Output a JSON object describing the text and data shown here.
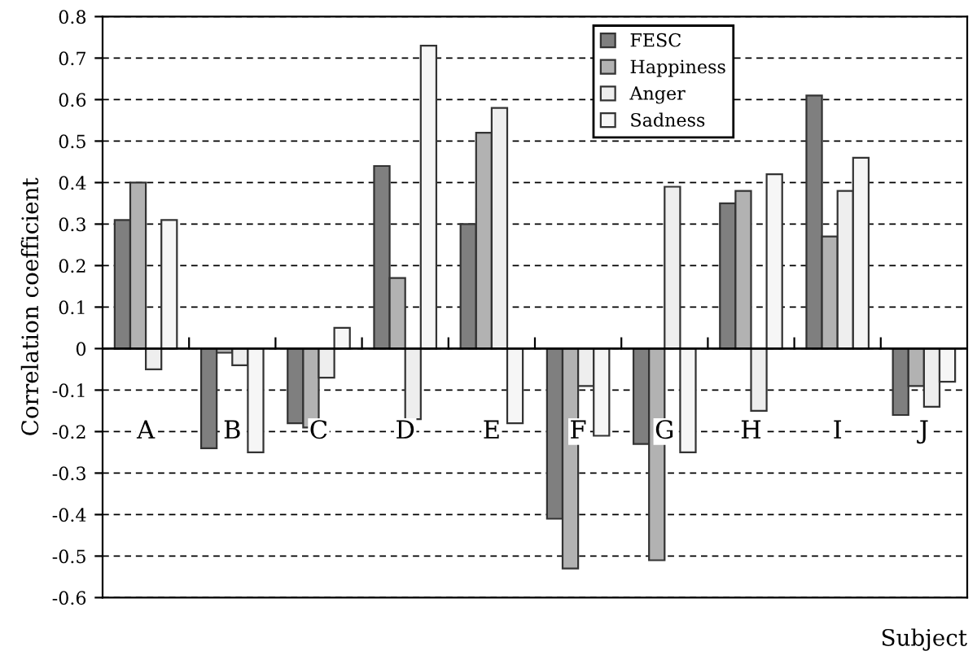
{
  "chart_data": {
    "type": "bar",
    "xlabel": "Subject",
    "ylabel": "Correlation coefficient",
    "categories": [
      "A",
      "B",
      "C",
      "D",
      "E",
      "F",
      "G",
      "H",
      "I",
      "J"
    ],
    "series": [
      {
        "name": "FESC",
        "color": "#7f7f7f",
        "values": [
          0.31,
          -0.24,
          -0.18,
          0.44,
          0.3,
          -0.41,
          -0.23,
          0.35,
          0.61,
          -0.16
        ]
      },
      {
        "name": "Happiness",
        "color": "#b2b2b2",
        "values": [
          0.4,
          -0.01,
          -0.19,
          0.17,
          0.52,
          -0.53,
          -0.51,
          0.38,
          0.27,
          -0.09
        ]
      },
      {
        "name": "Anger",
        "color": "#eeeeee",
        "values": [
          -0.05,
          -0.04,
          -0.07,
          -0.17,
          0.58,
          -0.09,
          0.39,
          -0.15,
          0.38,
          -0.14
        ]
      },
      {
        "name": "Sadness",
        "color": "#f6f6f6",
        "values": [
          0.31,
          -0.25,
          0.05,
          0.73,
          -0.18,
          -0.21,
          -0.25,
          0.42,
          0.46,
          -0.08
        ]
      }
    ],
    "ylim": [
      -0.6,
      0.8
    ],
    "yticks": [
      -0.6,
      -0.5,
      -0.4,
      -0.3,
      -0.2,
      -0.1,
      0,
      0.1,
      0.2,
      0.3,
      0.4,
      0.5,
      0.6,
      0.7,
      0.8
    ],
    "grid": "y",
    "legend": "top right"
  }
}
